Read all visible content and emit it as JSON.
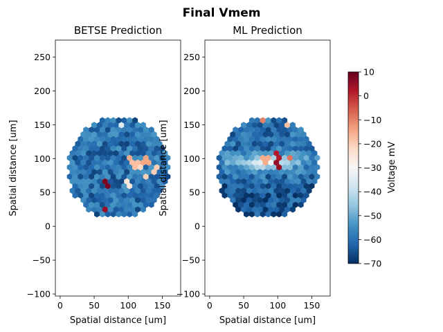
{
  "figure": {
    "title": "Final Vmem"
  },
  "colorbar": {
    "label": "Voltage mV",
    "colormap": "RdBu_r",
    "range": [
      -70,
      10
    ],
    "ticks": [
      "10",
      "0",
      "−10",
      "−20",
      "−30",
      "−40",
      "−50",
      "−60",
      "−70"
    ],
    "tick_values": [
      10,
      0,
      -10,
      -20,
      -30,
      -40,
      -50,
      -60,
      -70
    ]
  },
  "chart_data": [
    {
      "type": "heatmap",
      "title": "BETSE Prediction",
      "xlabel": "Spatial distance [um]",
      "ylabel": "Spatial distance [um]",
      "xlim": [
        -7,
        177
      ],
      "ylim": [
        -103,
        275
      ],
      "xticks": [
        0,
        50,
        100,
        150
      ],
      "yticks": [
        -100,
        -50,
        0,
        50,
        100,
        150,
        200,
        250
      ],
      "xticklabels": [
        "0",
        "50",
        "100",
        "150"
      ],
      "yticklabels": [
        "−100",
        "−50",
        "0",
        "50",
        "100",
        "150",
        "200",
        "250"
      ],
      "tissue": {
        "center": [
          85,
          86
        ],
        "radius": 75,
        "cell_spacing": 8,
        "base_vmem_mV": -60
      },
      "hotspots": [
        {
          "x": 68,
          "y": 62,
          "vmem": 8
        },
        {
          "x": 68,
          "y": 24,
          "vmem": 5
        },
        {
          "x": 100,
          "y": 100,
          "vmem": -15
        },
        {
          "x": 110,
          "y": 90,
          "vmem": -18
        },
        {
          "x": 118,
          "y": 85,
          "vmem": -22
        },
        {
          "x": 126,
          "y": 97,
          "vmem": -14
        },
        {
          "x": 126,
          "y": 72,
          "vmem": -20
        },
        {
          "x": 100,
          "y": 62,
          "vmem": -25
        },
        {
          "x": 88,
          "y": 150,
          "vmem": -35
        },
        {
          "x": 140,
          "y": 85,
          "vmem": -20
        }
      ]
    },
    {
      "type": "heatmap",
      "title": "ML Prediction",
      "xlabel": "Spatial distance [um]",
      "ylabel": "Spatial distance [um]",
      "xlim": [
        -7,
        177
      ],
      "ylim": [
        -103,
        275
      ],
      "xticks": [
        0,
        50,
        100,
        150
      ],
      "yticks": [
        -100,
        -50,
        0,
        50,
        100,
        150,
        200,
        250
      ],
      "xticklabels": [
        "0",
        "50",
        "100",
        "150"
      ],
      "yticklabels": [
        "−100",
        "−50",
        "0",
        "50",
        "100",
        "150",
        "200",
        "250"
      ],
      "tissue": {
        "center": [
          85,
          86
        ],
        "radius": 75,
        "cell_spacing": 8,
        "base_vmem_mV": -60
      },
      "band": {
        "y_center": 95,
        "width": 18,
        "peak_vmem_mV": -30
      },
      "hotspots": [
        {
          "x": 100,
          "y": 105,
          "vmem": 2
        },
        {
          "x": 100,
          "y": 92,
          "vmem": 5
        },
        {
          "x": 118,
          "y": 100,
          "vmem": -8
        },
        {
          "x": 76,
          "y": 158,
          "vmem": -10
        },
        {
          "x": 112,
          "y": 150,
          "vmem": -18
        },
        {
          "x": 82,
          "y": 100,
          "vmem": -15
        }
      ]
    }
  ]
}
